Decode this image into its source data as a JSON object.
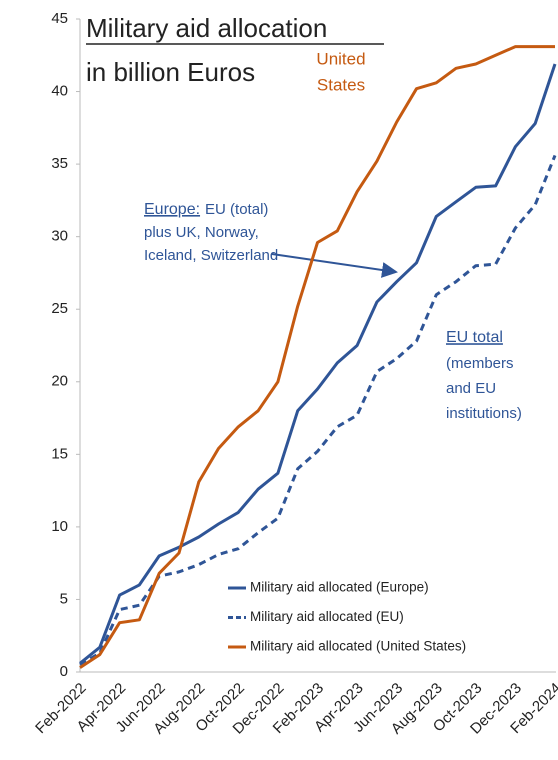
{
  "chart_data": {
    "type": "line",
    "title_lines": [
      "Military aid allocation",
      "in billion Euros"
    ],
    "categories": [
      "Feb-2022",
      null,
      "Apr-2022",
      null,
      "Jun-2022",
      null,
      "Aug-2022",
      null,
      "Oct-2022",
      null,
      "Dec-2022",
      null,
      "Feb-2023",
      null,
      "Apr-2023",
      null,
      "Jun-2023",
      null,
      "Aug-2023",
      null,
      "Oct-2023",
      null,
      "Dec-2023",
      null,
      "Feb-2024"
    ],
    "series": [
      {
        "name": "Military aid allocated (Europe)",
        "color": "#2f5597",
        "linestyle": "solid",
        "values": [
          0.6,
          1.7,
          5.3,
          6,
          8,
          8.6,
          9.3,
          10.2,
          11,
          12.6,
          13.7,
          18,
          19.5,
          21.3,
          22.5,
          25.5,
          26.9,
          28.2,
          31.4,
          32.4,
          33.4,
          33.5,
          36.2,
          37.8,
          41.9
        ]
      },
      {
        "name": "Military aid allocated (EU)",
        "color": "#2f5597",
        "linestyle": "dashed",
        "values": [
          0.5,
          1.3,
          4.3,
          4.6,
          6.6,
          6.9,
          7.4,
          8.1,
          8.5,
          9.6,
          10.6,
          14,
          15.2,
          16.9,
          17.7,
          20.7,
          21.6,
          22.8,
          26,
          26.9,
          28,
          28.1,
          30.6,
          32.2,
          35.6
        ]
      },
      {
        "name": "Military aid allocated (United States)",
        "color": "#c55a11",
        "linestyle": "solid",
        "values": [
          0.3,
          1.2,
          3.4,
          3.6,
          6.8,
          8.2,
          13.1,
          15.4,
          16.9,
          18,
          20,
          25.2,
          29.6,
          30.4,
          33.1,
          35.2,
          37.9,
          40.2,
          40.6,
          41.6,
          41.9,
          42.5,
          43.1,
          43.1,
          43.1
        ]
      }
    ],
    "ylim": [
      0,
      45
    ],
    "yticks": [
      0,
      5,
      10,
      15,
      20,
      25,
      30,
      35,
      40,
      45
    ],
    "grid": false,
    "legend": "lower right",
    "us_note": {
      "lines": [
        "United",
        "States"
      ],
      "color": "#c55a11"
    },
    "europe_note": {
      "heading": "Europe:",
      "lines": [
        "EU (total)",
        "plus UK, Norway,",
        "Iceland, Switzerland"
      ],
      "color": "#2f5597"
    },
    "eu_note": {
      "heading": "EU total",
      "lines": [
        "(members",
        "and EU",
        "institutions)"
      ],
      "color": "#2f5597"
    }
  }
}
